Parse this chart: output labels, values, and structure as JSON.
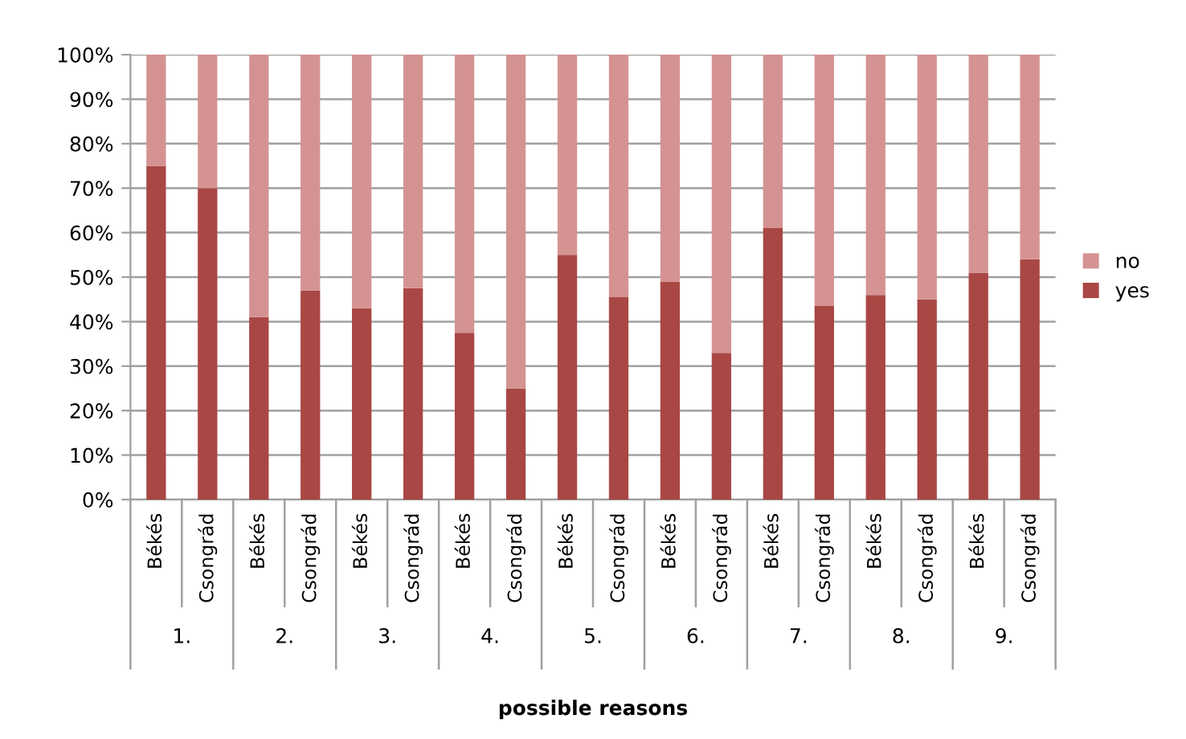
{
  "chart_data": {
    "type": "bar",
    "stacked": true,
    "xlabel": "possible reasons",
    "categories": [
      "Békés",
      "Csongrád",
      "Békés",
      "Csongrád",
      "Békés",
      "Csongrád",
      "Békés",
      "Csongrád",
      "Békés",
      "Csongrád",
      "Békés",
      "Csongrád",
      "Békés",
      "Csongrád",
      "Békés",
      "Csongrád",
      "Békés",
      "Csongrád"
    ],
    "series": [
      {
        "name": "yes",
        "color": "#a94744",
        "values": [
          75,
          70,
          41,
          47,
          43,
          47.5,
          37.5,
          25,
          55,
          45.5,
          49,
          33,
          61,
          43.5,
          46,
          45,
          51,
          54
        ]
      },
      {
        "name": "no",
        "color": "#d49392",
        "values": [
          25,
          30,
          59,
          53,
          57,
          52.5,
          62.5,
          75,
          45,
          54.5,
          51,
          67,
          39,
          56.5,
          54,
          55,
          49,
          46
        ]
      }
    ],
    "annotations": [
      "1.",
      "2.",
      "3.",
      "4.",
      "5.",
      "6.",
      "7.",
      "8.",
      "9."
    ],
    "ylim": [
      0,
      100
    ],
    "yticks": [
      {
        "value": 0,
        "label": "0%"
      },
      {
        "value": 10,
        "label": "10%"
      },
      {
        "value": 20,
        "label": "20%"
      },
      {
        "value": 30,
        "label": "30%"
      },
      {
        "value": 40,
        "label": "40%"
      },
      {
        "value": 50,
        "label": "50%"
      },
      {
        "value": 60,
        "label": "60%"
      },
      {
        "value": 70,
        "label": "70%"
      },
      {
        "value": 80,
        "label": "80%"
      },
      {
        "value": 90,
        "label": "90%"
      },
      {
        "value": 100,
        "label": "100%"
      }
    ],
    "grid": "y",
    "legend": "right"
  }
}
